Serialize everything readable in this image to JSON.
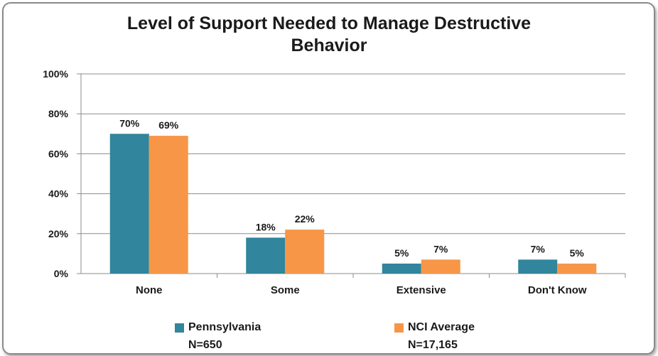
{
  "chart_data": {
    "type": "bar",
    "title": [
      "Level of Support Needed to Manage Destructive",
      "Behavior"
    ],
    "categories": [
      "None",
      "Some",
      "Extensive",
      "Don't Know"
    ],
    "series": [
      {
        "name": "Pennsylvania",
        "note": "N=650",
        "color": "#31859c",
        "values": [
          70,
          18,
          5,
          7
        ],
        "labels": [
          "70%",
          "18%",
          "5%",
          "7%"
        ]
      },
      {
        "name": "NCI Average",
        "note": "N=17,165",
        "color": "#f79646",
        "values": [
          69,
          22,
          7,
          5
        ],
        "labels": [
          "69%",
          "22%",
          "7%",
          "5%"
        ]
      }
    ],
    "yticks": [
      "0%",
      "20%",
      "40%",
      "60%",
      "80%",
      "100%"
    ],
    "ylim": [
      0,
      100
    ],
    "grid": true,
    "legend_position": "bottom"
  }
}
